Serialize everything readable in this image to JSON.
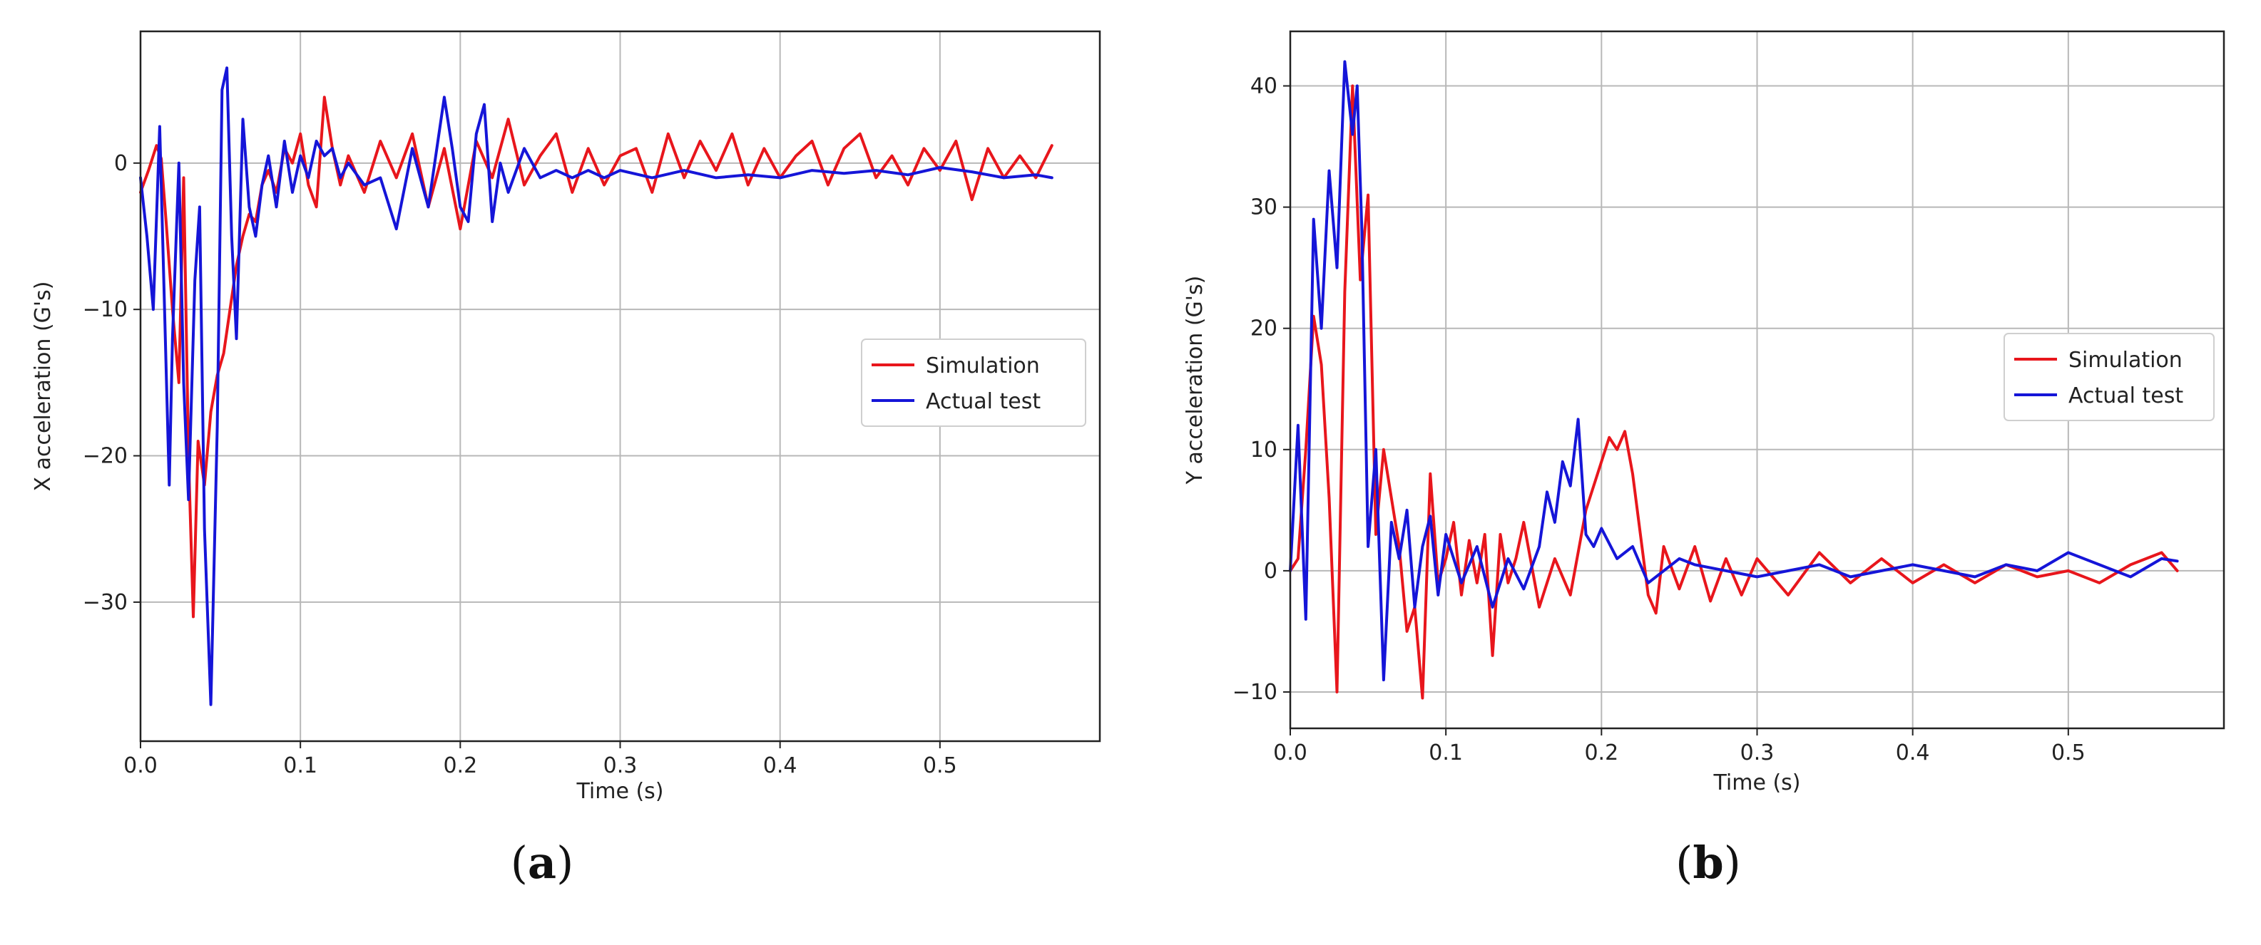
{
  "chart_data": [
    {
      "id": "a",
      "type": "line",
      "caption": "(a)",
      "caption_letter": "a",
      "title": "",
      "xlabel": "Time (s)",
      "ylabel": "X acceleration (G's)",
      "xlim": [
        0.0,
        0.6
      ],
      "ylim": [
        -39.5,
        9.0
      ],
      "xticks": [
        0.0,
        0.1,
        0.2,
        0.3,
        0.4,
        0.5
      ],
      "xtick_labels": [
        "0.0",
        "0.1",
        "0.2",
        "0.3",
        "0.4",
        "0.5"
      ],
      "yticks": [
        -30,
        -20,
        -10,
        0
      ],
      "ytick_labels": [
        "−30",
        "−20",
        "−10",
        "0"
      ],
      "grid": true,
      "legend_position": "center-right",
      "series": [
        {
          "name": "Simulation",
          "color": "#e8161c",
          "x": [
            0.0,
            0.005,
            0.01,
            0.013,
            0.016,
            0.02,
            0.024,
            0.027,
            0.03,
            0.033,
            0.036,
            0.04,
            0.044,
            0.048,
            0.052,
            0.056,
            0.06,
            0.064,
            0.068,
            0.072,
            0.076,
            0.08,
            0.085,
            0.09,
            0.095,
            0.1,
            0.105,
            0.11,
            0.115,
            0.12,
            0.125,
            0.13,
            0.14,
            0.15,
            0.16,
            0.17,
            0.18,
            0.19,
            0.2,
            0.21,
            0.22,
            0.23,
            0.24,
            0.25,
            0.26,
            0.27,
            0.28,
            0.29,
            0.3,
            0.31,
            0.32,
            0.33,
            0.34,
            0.35,
            0.36,
            0.37,
            0.38,
            0.39,
            0.4,
            0.41,
            0.42,
            0.43,
            0.44,
            0.45,
            0.46,
            0.47,
            0.48,
            0.49,
            0.5,
            0.51,
            0.52,
            0.53,
            0.54,
            0.55,
            0.56,
            0.57
          ],
          "values": [
            -2.0,
            -0.5,
            1.2,
            0.3,
            -4.0,
            -10.0,
            -15.0,
            -1.0,
            -20.0,
            -31.0,
            -19.0,
            -22.0,
            -17.0,
            -14.5,
            -13.0,
            -10.0,
            -7.0,
            -5.0,
            -3.5,
            -4.0,
            -1.5,
            -0.5,
            -2.0,
            1.0,
            0.0,
            2.0,
            -1.5,
            -3.0,
            4.5,
            1.0,
            -1.5,
            0.5,
            -2.0,
            1.5,
            -1.0,
            2.0,
            -3.0,
            1.0,
            -4.5,
            1.5,
            -1.0,
            3.0,
            -1.5,
            0.5,
            2.0,
            -2.0,
            1.0,
            -1.5,
            0.5,
            1.0,
            -2.0,
            2.0,
            -1.0,
            1.5,
            -0.5,
            2.0,
            -1.5,
            1.0,
            -1.0,
            0.5,
            1.5,
            -1.5,
            1.0,
            2.0,
            -1.0,
            0.5,
            -1.5,
            1.0,
            -0.5,
            1.5,
            -2.5,
            1.0,
            -1.0,
            0.5,
            -1.0,
            1.2
          ]
        },
        {
          "name": "Actual test",
          "color": "#1515d8",
          "x": [
            0.0,
            0.004,
            0.008,
            0.012,
            0.016,
            0.018,
            0.02,
            0.024,
            0.027,
            0.03,
            0.034,
            0.037,
            0.04,
            0.044,
            0.048,
            0.051,
            0.054,
            0.057,
            0.06,
            0.064,
            0.068,
            0.072,
            0.076,
            0.08,
            0.085,
            0.09,
            0.095,
            0.1,
            0.105,
            0.11,
            0.115,
            0.12,
            0.125,
            0.13,
            0.14,
            0.15,
            0.16,
            0.17,
            0.18,
            0.19,
            0.195,
            0.2,
            0.205,
            0.21,
            0.215,
            0.22,
            0.225,
            0.23,
            0.24,
            0.25,
            0.26,
            0.27,
            0.28,
            0.29,
            0.3,
            0.32,
            0.34,
            0.36,
            0.38,
            0.4,
            0.42,
            0.44,
            0.46,
            0.48,
            0.5,
            0.52,
            0.54,
            0.56,
            0.57
          ],
          "values": [
            -1.0,
            -5.0,
            -10.0,
            2.5,
            -14.0,
            -22.0,
            -12.0,
            0.0,
            -15.0,
            -23.0,
            -8.0,
            -3.0,
            -25.0,
            -37.0,
            -18.0,
            5.0,
            6.5,
            -5.0,
            -12.0,
            3.0,
            -3.0,
            -5.0,
            -1.5,
            0.5,
            -3.0,
            1.5,
            -2.0,
            0.5,
            -1.0,
            1.5,
            0.5,
            1.0,
            -1.0,
            0.0,
            -1.5,
            -1.0,
            -4.5,
            1.0,
            -3.0,
            4.5,
            1.0,
            -3.0,
            -4.0,
            2.0,
            4.0,
            -4.0,
            0.0,
            -2.0,
            1.0,
            -1.0,
            -0.5,
            -1.0,
            -0.5,
            -1.0,
            -0.5,
            -1.0,
            -0.5,
            -1.0,
            -0.8,
            -1.0,
            -0.5,
            -0.7,
            -0.5,
            -0.8,
            -0.3,
            -0.6,
            -1.0,
            -0.8,
            -1.0
          ]
        }
      ]
    },
    {
      "id": "b",
      "type": "line",
      "caption": "(b)",
      "caption_letter": "b",
      "title": "",
      "xlabel": "Time (s)",
      "ylabel": "Y acceleration (G's)",
      "xlim": [
        0.0,
        0.6
      ],
      "ylim": [
        -13.0,
        44.5
      ],
      "xticks": [
        0.0,
        0.1,
        0.2,
        0.3,
        0.4,
        0.5
      ],
      "xtick_labels": [
        "0.0",
        "0.1",
        "0.2",
        "0.3",
        "0.4",
        "0.5"
      ],
      "yticks": [
        -10,
        0,
        10,
        20,
        30,
        40
      ],
      "ytick_labels": [
        "−10",
        "0",
        "10",
        "20",
        "30",
        "40"
      ],
      "grid": true,
      "legend_position": "center-right",
      "series": [
        {
          "name": "Simulation",
          "color": "#e8161c",
          "x": [
            0.0,
            0.005,
            0.01,
            0.015,
            0.02,
            0.025,
            0.03,
            0.035,
            0.04,
            0.045,
            0.05,
            0.055,
            0.06,
            0.065,
            0.07,
            0.075,
            0.08,
            0.085,
            0.09,
            0.095,
            0.1,
            0.105,
            0.11,
            0.115,
            0.12,
            0.125,
            0.13,
            0.135,
            0.14,
            0.145,
            0.15,
            0.16,
            0.17,
            0.18,
            0.19,
            0.2,
            0.205,
            0.21,
            0.215,
            0.22,
            0.225,
            0.23,
            0.235,
            0.24,
            0.25,
            0.26,
            0.27,
            0.28,
            0.29,
            0.3,
            0.32,
            0.34,
            0.36,
            0.38,
            0.4,
            0.42,
            0.44,
            0.46,
            0.48,
            0.5,
            0.52,
            0.54,
            0.56,
            0.57
          ],
          "values": [
            0.0,
            1.0,
            10.0,
            21.0,
            17.0,
            6.0,
            -10.0,
            23.0,
            40.0,
            24.0,
            31.0,
            3.0,
            10.0,
            6.0,
            2.0,
            -5.0,
            -3.0,
            -10.5,
            8.0,
            -1.0,
            1.0,
            4.0,
            -2.0,
            2.5,
            -1.0,
            3.0,
            -7.0,
            3.0,
            -1.0,
            1.0,
            4.0,
            -3.0,
            1.0,
            -2.0,
            5.0,
            9.0,
            11.0,
            10.0,
            11.5,
            8.0,
            3.0,
            -2.0,
            -3.5,
            2.0,
            -1.5,
            2.0,
            -2.5,
            1.0,
            -2.0,
            1.0,
            -2.0,
            1.5,
            -1.0,
            1.0,
            -1.0,
            0.5,
            -1.0,
            0.5,
            -0.5,
            0.0,
            -1.0,
            0.5,
            1.5,
            0.0
          ]
        },
        {
          "name": "Actual test",
          "color": "#1515d8",
          "x": [
            0.0,
            0.005,
            0.01,
            0.015,
            0.02,
            0.025,
            0.03,
            0.035,
            0.04,
            0.043,
            0.046,
            0.05,
            0.055,
            0.06,
            0.065,
            0.07,
            0.075,
            0.08,
            0.085,
            0.09,
            0.095,
            0.1,
            0.11,
            0.12,
            0.13,
            0.14,
            0.15,
            0.16,
            0.165,
            0.17,
            0.175,
            0.18,
            0.185,
            0.19,
            0.195,
            0.2,
            0.21,
            0.22,
            0.23,
            0.24,
            0.25,
            0.26,
            0.28,
            0.3,
            0.32,
            0.34,
            0.36,
            0.38,
            0.4,
            0.42,
            0.44,
            0.46,
            0.48,
            0.5,
            0.52,
            0.54,
            0.56,
            0.57
          ],
          "values": [
            0.0,
            12.0,
            -4.0,
            29.0,
            20.0,
            33.0,
            25.0,
            42.0,
            36.0,
            40.0,
            28.0,
            2.0,
            10.0,
            -9.0,
            4.0,
            1.0,
            5.0,
            -3.0,
            2.0,
            4.5,
            -2.0,
            3.0,
            -1.0,
            2.0,
            -3.0,
            1.0,
            -1.5,
            2.0,
            6.5,
            4.0,
            9.0,
            7.0,
            12.5,
            3.0,
            2.0,
            3.5,
            1.0,
            2.0,
            -1.0,
            0.0,
            1.0,
            0.5,
            0.0,
            -0.5,
            0.0,
            0.5,
            -0.5,
            0.0,
            0.5,
            0.0,
            -0.5,
            0.5,
            0.0,
            1.5,
            0.5,
            -0.5,
            1.0,
            0.8
          ]
        }
      ]
    }
  ]
}
